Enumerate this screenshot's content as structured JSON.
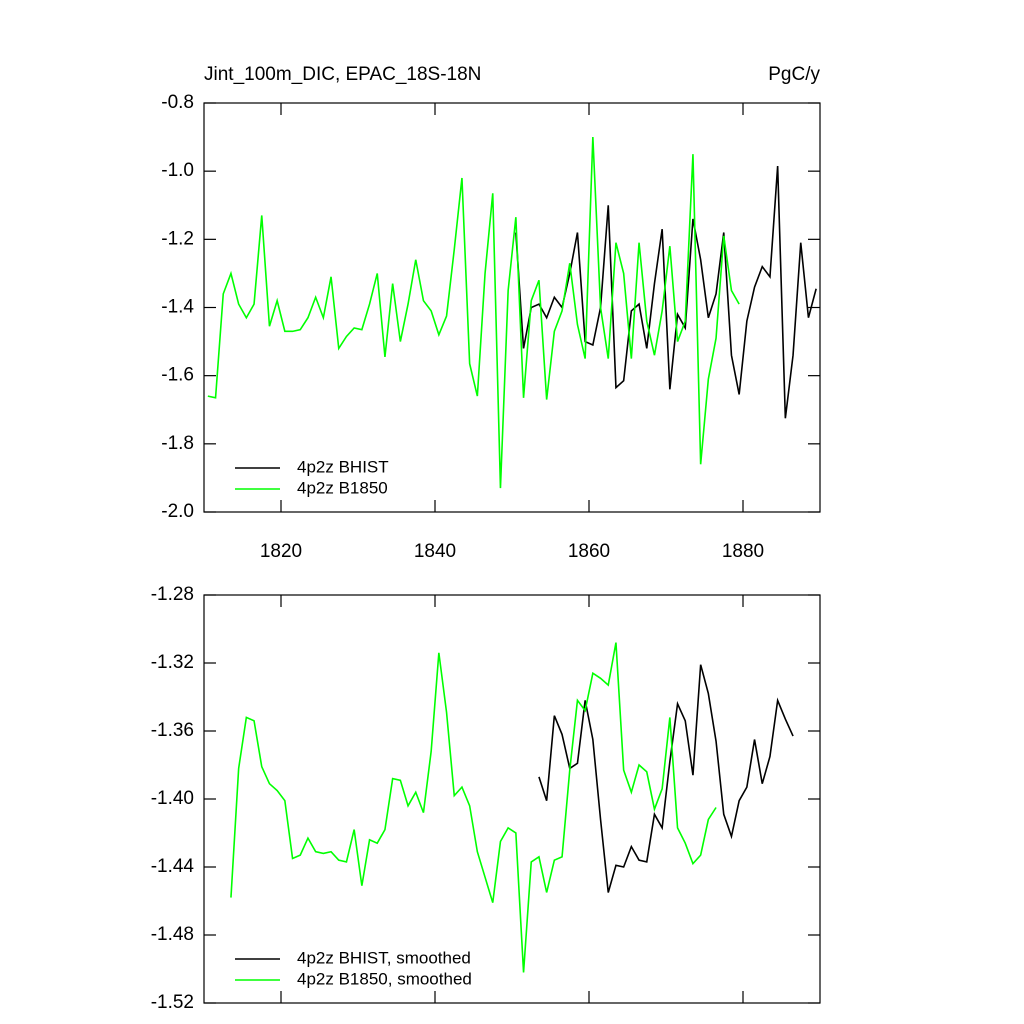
{
  "chart_data": [
    {
      "type": "line",
      "title": "Jint_100m_DIC, EPAC_18S-18N",
      "unit_label": "PgC/y",
      "xlim": [
        1810,
        1890
      ],
      "xticks": [
        1820,
        1840,
        1860,
        1880
      ],
      "ylim": [
        -2.0,
        -0.8
      ],
      "yticks": [
        {
          "value": -0.8,
          "label": "-0.8"
        },
        {
          "value": -1.0,
          "label": "-1.0"
        },
        -1.2,
        -1.4,
        -1.6,
        -1.8,
        {
          "value": -2.0,
          "label": "-2.0"
        }
      ],
      "series": [
        {
          "name": "4p2z BHIST",
          "color": "#000000",
          "x": [
            1850.5,
            1851.5,
            1852.5,
            1853.5,
            1854.5,
            1855.5,
            1856.5,
            1857.5,
            1858.5,
            1859.5,
            1860.5,
            1861.5,
            1862.5,
            1863.5,
            1864.5,
            1865.5,
            1866.5,
            1867.5,
            1868.5,
            1869.5,
            1870.5,
            1871.5,
            1872.5,
            1873.5,
            1874.5,
            1875.5,
            1876.5,
            1877.5,
            1878.5,
            1879.5,
            1880.5,
            1881.5,
            1882.5,
            1883.5,
            1884.5,
            1885.5,
            1886.5,
            1887.5,
            1888.5,
            1889.5
          ],
          "values": [
            -1.18,
            -1.52,
            -1.4,
            -1.39,
            -1.43,
            -1.37,
            -1.4,
            -1.3,
            -1.18,
            -1.5,
            -1.51,
            -1.4,
            -1.1,
            -1.635,
            -1.615,
            -1.41,
            -1.39,
            -1.52,
            -1.33,
            -1.17,
            -1.64,
            -1.42,
            -1.46,
            -1.14,
            -1.26,
            -1.43,
            -1.36,
            -1.18,
            -1.54,
            -1.655,
            -1.44,
            -1.34,
            -1.28,
            -1.31,
            -0.985,
            -1.725,
            -1.54,
            -1.21,
            -1.43,
            -1.345
          ]
        },
        {
          "name": "4p2z B1850",
          "color": "#00ff00",
          "x": [
            1810.5,
            1811.5,
            1812.5,
            1813.5,
            1814.5,
            1815.5,
            1816.5,
            1817.5,
            1818.5,
            1819.5,
            1820.5,
            1821.5,
            1822.5,
            1823.5,
            1824.5,
            1825.5,
            1826.5,
            1827.5,
            1828.5,
            1829.5,
            1830.5,
            1831.5,
            1832.5,
            1833.5,
            1834.5,
            1835.5,
            1836.5,
            1837.5,
            1838.5,
            1839.5,
            1840.5,
            1841.5,
            1842.5,
            1843.5,
            1844.5,
            1845.5,
            1846.5,
            1847.5,
            1848.5,
            1849.5,
            1850.5,
            1851.5,
            1852.5,
            1853.5,
            1854.5,
            1855.5,
            1856.5,
            1857.5,
            1858.5,
            1859.5,
            1860.5,
            1861.5,
            1862.5,
            1863.5,
            1864.5,
            1865.5,
            1866.5,
            1867.5,
            1868.5,
            1869.5,
            1870.5,
            1871.5,
            1872.5,
            1873.5,
            1874.5,
            1875.5,
            1876.5,
            1877.5,
            1878.5,
            1879.5
          ],
          "values": [
            -1.66,
            -1.665,
            -1.36,
            -1.3,
            -1.39,
            -1.43,
            -1.39,
            -1.13,
            -1.455,
            -1.38,
            -1.47,
            -1.47,
            -1.465,
            -1.43,
            -1.37,
            -1.43,
            -1.31,
            -1.52,
            -1.485,
            -1.46,
            -1.465,
            -1.39,
            -1.3,
            -1.545,
            -1.33,
            -1.5,
            -1.39,
            -1.26,
            -1.38,
            -1.41,
            -1.48,
            -1.425,
            -1.23,
            -1.02,
            -1.565,
            -1.66,
            -1.3,
            -1.065,
            -1.93,
            -1.35,
            -1.135,
            -1.665,
            -1.38,
            -1.32,
            -1.67,
            -1.47,
            -1.41,
            -1.27,
            -1.45,
            -1.55,
            -0.9,
            -1.4,
            -1.55,
            -1.21,
            -1.3,
            -1.55,
            -1.21,
            -1.44,
            -1.54,
            -1.41,
            -1.22,
            -1.5,
            -1.44,
            -0.95,
            -1.86,
            -1.61,
            -1.49,
            -1.19,
            -1.35,
            -1.39
          ]
        }
      ]
    },
    {
      "type": "line",
      "xlim": [
        1810,
        1890
      ],
      "ylim": [
        -1.52,
        -1.28
      ],
      "yticks": [
        -1.28,
        -1.32,
        -1.36,
        {
          "value": -1.4,
          "label": "-1.40"
        },
        -1.44,
        -1.48,
        -1.52
      ],
      "series": [
        {
          "name": "4p2z BHIST, smoothed",
          "color": "#000000",
          "x": [
            1853.5,
            1854.5,
            1855.5,
            1856.5,
            1857.5,
            1858.5,
            1859.5,
            1860.5,
            1861.5,
            1862.5,
            1863.5,
            1864.5,
            1865.5,
            1866.5,
            1867.5,
            1868.5,
            1869.5,
            1870.5,
            1871.5,
            1872.5,
            1873.5,
            1874.5,
            1875.5,
            1876.5,
            1877.5,
            1878.5,
            1879.5,
            1880.5,
            1881.5,
            1882.5,
            1883.5,
            1884.5,
            1885.5,
            1886.5
          ],
          "values": [
            -1.387,
            -1.401,
            -1.351,
            -1.362,
            -1.382,
            -1.379,
            -1.342,
            -1.365,
            -1.412,
            -1.455,
            -1.439,
            -1.44,
            -1.428,
            -1.436,
            -1.437,
            -1.409,
            -1.417,
            -1.378,
            -1.344,
            -1.354,
            -1.386,
            -1.321,
            -1.338,
            -1.366,
            -1.409,
            -1.422,
            -1.401,
            -1.393,
            -1.365,
            -1.391,
            -1.375,
            -1.342,
            -1.353,
            -1.363
          ]
        },
        {
          "name": "4p2z B1850, smoothed",
          "color": "#00ff00",
          "x": [
            1813.5,
            1814.5,
            1815.5,
            1816.5,
            1817.5,
            1818.5,
            1819.5,
            1820.5,
            1821.5,
            1822.5,
            1823.5,
            1824.5,
            1825.5,
            1826.5,
            1827.5,
            1828.5,
            1829.5,
            1830.5,
            1831.5,
            1832.5,
            1833.5,
            1834.5,
            1835.5,
            1836.5,
            1837.5,
            1838.5,
            1839.5,
            1840.5,
            1841.5,
            1842.5,
            1843.5,
            1844.5,
            1845.5,
            1846.5,
            1847.5,
            1848.5,
            1849.5,
            1850.5,
            1851.5,
            1852.5,
            1853.5,
            1854.5,
            1855.5,
            1856.5,
            1857.5,
            1858.5,
            1859.5,
            1860.5,
            1861.5,
            1862.5,
            1863.5,
            1864.5,
            1865.5,
            1866.5,
            1867.5,
            1868.5,
            1869.5,
            1870.5,
            1871.5,
            1872.5,
            1873.5,
            1874.5,
            1875.5,
            1876.5
          ],
          "values": [
            -1.458,
            -1.382,
            -1.352,
            -1.354,
            -1.381,
            -1.391,
            -1.395,
            -1.401,
            -1.435,
            -1.433,
            -1.423,
            -1.431,
            -1.432,
            -1.431,
            -1.436,
            -1.437,
            -1.418,
            -1.451,
            -1.424,
            -1.426,
            -1.418,
            -1.388,
            -1.389,
            -1.404,
            -1.396,
            -1.408,
            -1.372,
            -1.314,
            -1.349,
            -1.398,
            -1.393,
            -1.404,
            -1.431,
            -1.446,
            -1.461,
            -1.425,
            -1.417,
            -1.42,
            -1.502,
            -1.437,
            -1.434,
            -1.455,
            -1.436,
            -1.434,
            -1.383,
            -1.342,
            -1.348,
            -1.326,
            -1.329,
            -1.333,
            -1.308,
            -1.383,
            -1.396,
            -1.38,
            -1.384,
            -1.406,
            -1.394,
            -1.352,
            -1.417,
            -1.426,
            -1.438,
            -1.433,
            -1.412,
            -1.405
          ]
        }
      ]
    }
  ]
}
